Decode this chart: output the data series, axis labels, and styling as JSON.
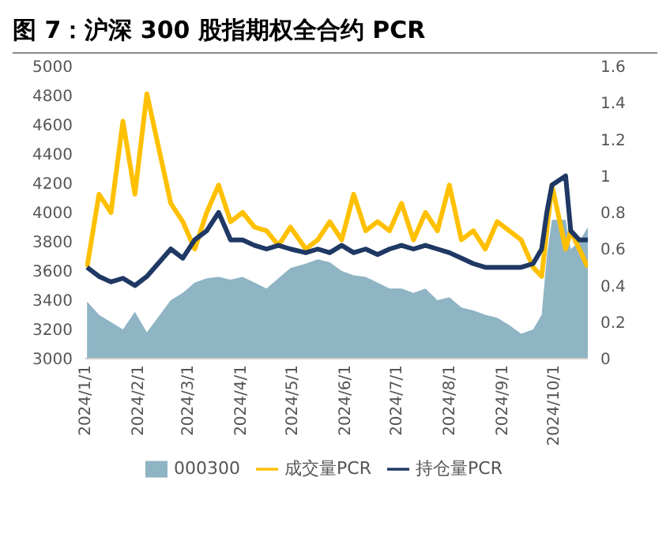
{
  "chart_data": {
    "type": "line",
    "title": "图 7：沪深 300 股指期权全合约 PCR",
    "x": [
      "2024-01-02",
      "2024-01-09",
      "2024-01-16",
      "2024-01-23",
      "2024-01-30",
      "2024-02-06",
      "2024-02-20",
      "2024-02-27",
      "2024-03-05",
      "2024-03-12",
      "2024-03-19",
      "2024-03-26",
      "2024-04-02",
      "2024-04-09",
      "2024-04-16",
      "2024-04-23",
      "2024-04-30",
      "2024-05-09",
      "2024-05-16",
      "2024-05-23",
      "2024-05-30",
      "2024-06-06",
      "2024-06-13",
      "2024-06-20",
      "2024-06-27",
      "2024-07-04",
      "2024-07-11",
      "2024-07-18",
      "2024-07-25",
      "2024-08-01",
      "2024-08-08",
      "2024-08-15",
      "2024-08-22",
      "2024-08-29",
      "2024-09-05",
      "2024-09-12",
      "2024-09-19",
      "2024-09-24",
      "2024-09-27",
      "2024-09-30",
      "2024-10-08",
      "2024-10-11",
      "2024-10-16",
      "2024-10-21"
    ],
    "series": [
      {
        "name": "000300",
        "type": "area",
        "axis": "y",
        "color": "#8fb4c4",
        "values": [
          3390,
          3300,
          3250,
          3200,
          3320,
          3180,
          3400,
          3450,
          3520,
          3550,
          3560,
          3540,
          3560,
          3520,
          3480,
          3550,
          3620,
          3650,
          3680,
          3660,
          3600,
          3570,
          3560,
          3520,
          3480,
          3480,
          3450,
          3480,
          3400,
          3420,
          3350,
          3330,
          3300,
          3280,
          3230,
          3170,
          3200,
          3300,
          3700,
          3950,
          3950,
          3750,
          3800,
          3900
        ]
      },
      {
        "name": "成交量PCR",
        "axis": "y2",
        "color": "#ffc000",
        "values": [
          0.5,
          0.9,
          0.8,
          1.3,
          0.9,
          1.45,
          0.85,
          0.75,
          0.6,
          0.8,
          0.95,
          0.75,
          0.8,
          0.72,
          0.7,
          0.62,
          0.72,
          0.6,
          0.65,
          0.75,
          0.65,
          0.9,
          0.7,
          0.75,
          0.7,
          0.85,
          0.65,
          0.8,
          0.7,
          0.95,
          0.65,
          0.7,
          0.6,
          0.75,
          0.7,
          0.65,
          0.5,
          0.45,
          0.7,
          0.95,
          0.6,
          0.7,
          0.6,
          0.5
        ]
      },
      {
        "name": "持仓量PCR",
        "axis": "y2",
        "color": "#1f3864",
        "values": [
          0.5,
          0.45,
          0.42,
          0.44,
          0.4,
          0.45,
          0.6,
          0.55,
          0.65,
          0.7,
          0.8,
          0.65,
          0.65,
          0.62,
          0.6,
          0.62,
          0.6,
          0.58,
          0.6,
          0.58,
          0.62,
          0.58,
          0.6,
          0.57,
          0.6,
          0.62,
          0.6,
          0.62,
          0.6,
          0.58,
          0.55,
          0.52,
          0.5,
          0.5,
          0.5,
          0.5,
          0.52,
          0.6,
          0.8,
          0.95,
          1.0,
          0.7,
          0.65,
          0.65
        ]
      }
    ],
    "xlim": [
      "2024-01-01",
      "2024-10-21"
    ],
    "xticks": [
      {
        "value": "2024-01-01",
        "label": "2024/1/1"
      },
      {
        "value": "2024-02-01",
        "label": "2024/2/1"
      },
      {
        "value": "2024-03-01",
        "label": "2024/3/1"
      },
      {
        "value": "2024-04-01",
        "label": "2024/4/1"
      },
      {
        "value": "2024-05-01",
        "label": "2024/5/1"
      },
      {
        "value": "2024-06-01",
        "label": "2024/6/1"
      },
      {
        "value": "2024-07-01",
        "label": "2024/7/1"
      },
      {
        "value": "2024-08-01",
        "label": "2024/8/1"
      },
      {
        "value": "2024-09-01",
        "label": "2024/9/1"
      },
      {
        "value": "2024-10-01",
        "label": "2024/10/1"
      }
    ],
    "ylim": [
      3000,
      5000
    ],
    "yticks": [
      3000,
      3200,
      3400,
      3600,
      3800,
      4000,
      4200,
      4400,
      4600,
      4800,
      5000
    ],
    "y2lim": [
      0,
      1.6
    ],
    "y2ticks": [
      0,
      0.2,
      0.4,
      0.6,
      0.8,
      1,
      1.2,
      1.4,
      1.6
    ],
    "grid": false,
    "legend": "bottom",
    "marker": "none",
    "line_style": "solid"
  }
}
